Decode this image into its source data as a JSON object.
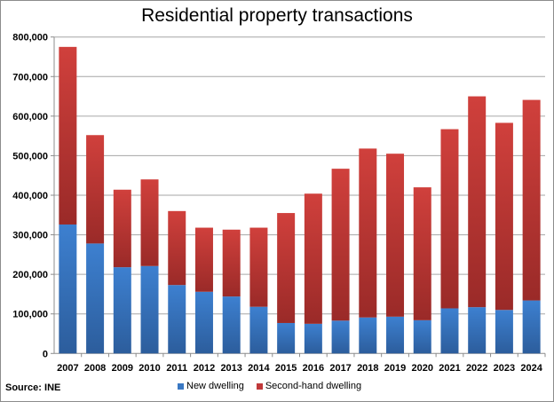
{
  "chart_data": {
    "type": "bar",
    "stacked": true,
    "title": "Residential property transactions",
    "xlabel": "",
    "ylabel": "",
    "ylim": [
      0,
      800000
    ],
    "yticks": [
      "0",
      "100,000",
      "200,000",
      "300,000",
      "400,000",
      "500,000",
      "600,000",
      "700,000",
      "800,000"
    ],
    "grid": true,
    "legend_position": "bottom",
    "categories": [
      "2007",
      "2008",
      "2009",
      "2010",
      "2011",
      "2012",
      "2013",
      "2014",
      "2015",
      "2016",
      "2017",
      "2018",
      "2019",
      "2020",
      "2021",
      "2022",
      "2023",
      "2024"
    ],
    "series": [
      {
        "name": "New dwelling",
        "color": "#3a78c3",
        "values": [
          326000,
          278000,
          218000,
          221000,
          173000,
          156000,
          144000,
          118000,
          77000,
          75000,
          83000,
          91000,
          93000,
          84000,
          114000,
          117000,
          110000,
          134000
        ]
      },
      {
        "name": "Second-hand dwelling",
        "color": "#c0393a",
        "values": [
          449000,
          274000,
          196000,
          219000,
          187000,
          162000,
          169000,
          200000,
          278000,
          329000,
          384000,
          427000,
          412000,
          336000,
          453000,
          533000,
          473000,
          507000
        ]
      }
    ],
    "source": "Source: INE"
  }
}
